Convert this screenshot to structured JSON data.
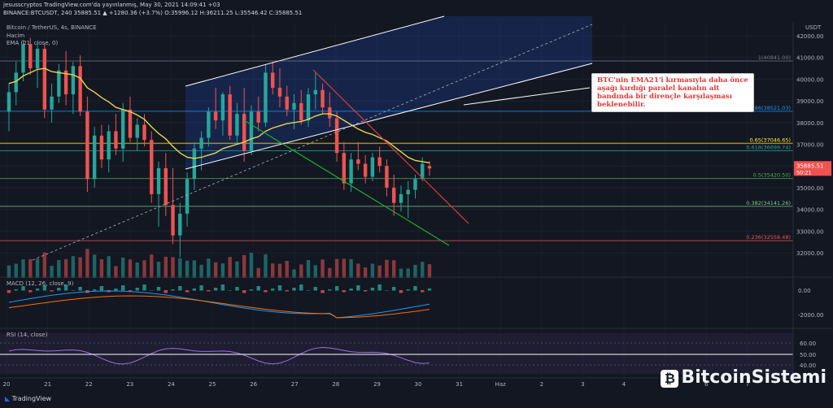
{
  "header": {
    "publisher": "jesusscryptos TradingView.com'da yayınlanmış, May 30, 2021 14:09:41 +03",
    "symbol_line": "BINANCE:BTCUSDT, 240  35885.51  ▲ +1280.36 (+3.7%)  O:35996.12  H:36211.25  L:35546.42  C:35885.51",
    "title": "Bitcoin / TetherUS, 4s, BINANCE",
    "volume_label": "Hacim",
    "ema_label": "EMA (21, close, 0)",
    "currency": "USDT"
  },
  "callout_text": "BTC'nin EMA21'i kırmasıyla daha önce aşağı kırdığı paralel kanalın alt bandında bir dirençle karşılaşması beklenebilir.",
  "brand": {
    "tradingview": "TradingView",
    "site": "BitcoinSistemi"
  },
  "indicators": {
    "macd_label": "MACD (12, 26, close, 9)",
    "rsi_label": "RSI (14, close)"
  },
  "colors": {
    "bull": "#26a69a",
    "bear": "#ef5350",
    "ema": "#e8d44d",
    "channel": "#ffffff",
    "red_line": "#e53935",
    "green_line": "#1faa2b",
    "rsi": "#9c6fd6",
    "bg": "#131722"
  },
  "chart_data": {
    "type": "candlestick",
    "title": "Bitcoin / TetherUS, 4s, BINANCE",
    "ylim": [
      31000,
      42500
    ],
    "y_ticks": [
      32000,
      33000,
      34000,
      35000,
      36000,
      37000,
      38000,
      39000,
      40000,
      41000,
      42000
    ],
    "x_ticks": [
      "20",
      "21",
      "22",
      "23",
      "24",
      "25",
      "26",
      "27",
      "28",
      "29",
      "30",
      "31",
      "Haz",
      "2",
      "3",
      "4",
      "5",
      "6",
      "7"
    ],
    "last_price": "35885.51",
    "countdown": "50:21",
    "candles": [
      [
        38500,
        39800,
        37600,
        39400
      ],
      [
        39400,
        40800,
        38800,
        40300
      ],
      [
        40300,
        41800,
        39900,
        41600
      ],
      [
        41600,
        41900,
        40200,
        40500
      ],
      [
        40500,
        41700,
        39600,
        41400
      ],
      [
        41400,
        41600,
        38200,
        38600
      ],
      [
        38600,
        39800,
        38000,
        39200
      ],
      [
        39200,
        40700,
        38900,
        40400
      ],
      [
        40400,
        41300,
        38800,
        39300
      ],
      [
        39300,
        40800,
        38400,
        40600
      ],
      [
        40600,
        41100,
        38300,
        38500
      ],
      [
        38500,
        39200,
        34800,
        35400
      ],
      [
        35400,
        37800,
        35000,
        37400
      ],
      [
        37400,
        37900,
        35900,
        36300
      ],
      [
        36300,
        37900,
        35700,
        37600
      ],
      [
        37600,
        38400,
        36500,
        36800
      ],
      [
        36800,
        38900,
        36200,
        38600
      ],
      [
        38600,
        39200,
        37100,
        37300
      ],
      [
        37300,
        38200,
        36700,
        37900
      ],
      [
        37900,
        38400,
        36900,
        37200
      ],
      [
        37200,
        37600,
        34300,
        34700
      ],
      [
        34700,
        36200,
        33200,
        35900
      ],
      [
        35900,
        36600,
        33700,
        34200
      ],
      [
        34200,
        35900,
        32400,
        32800
      ],
      [
        32800,
        34300,
        31800,
        33800
      ],
      [
        33800,
        35700,
        33200,
        35400
      ],
      [
        35400,
        37100,
        34900,
        36800
      ],
      [
        36800,
        37600,
        35800,
        37300
      ],
      [
        37300,
        38700,
        36900,
        38500
      ],
      [
        38500,
        39600,
        37700,
        38100
      ],
      [
        38100,
        39400,
        37400,
        39300
      ],
      [
        39300,
        39700,
        37200,
        37400
      ],
      [
        37400,
        38900,
        37000,
        38400
      ],
      [
        38400,
        39600,
        36200,
        36700
      ],
      [
        36700,
        38800,
        36500,
        38500
      ],
      [
        38500,
        39200,
        37600,
        38000
      ],
      [
        38000,
        40700,
        37800,
        40300
      ],
      [
        40300,
        40800,
        39300,
        39600
      ],
      [
        39600,
        40500,
        38700,
        39200
      ],
      [
        39200,
        39700,
        38300,
        38600
      ],
      [
        38600,
        39300,
        37700,
        38900
      ],
      [
        38900,
        39500,
        37900,
        38100
      ],
      [
        38100,
        39600,
        37800,
        39300
      ],
      [
        39300,
        40300,
        38600,
        39500
      ],
      [
        39500,
        39800,
        38400,
        38700
      ],
      [
        38700,
        39400,
        37800,
        38200
      ],
      [
        38200,
        38500,
        36200,
        36600
      ],
      [
        36600,
        37100,
        34900,
        35200
      ],
      [
        35200,
        36600,
        34800,
        36300
      ],
      [
        36300,
        37100,
        35800,
        36100
      ],
      [
        36100,
        36500,
        35200,
        35500
      ],
      [
        35500,
        36600,
        35300,
        36400
      ],
      [
        36400,
        36900,
        35700,
        36000
      ],
      [
        36000,
        36300,
        34600,
        35000
      ],
      [
        35000,
        35600,
        33700,
        34300
      ],
      [
        34300,
        35100,
        33900,
        34700
      ],
      [
        34700,
        35300,
        33600,
        34900
      ],
      [
        34900,
        35600,
        34500,
        35400
      ],
      [
        35400,
        36400,
        35300,
        36100
      ],
      [
        35996.12,
        36211.25,
        35546.42,
        35885.51
      ]
    ],
    "ema21": [
      39800,
      39900,
      40150,
      40300,
      40450,
      40500,
      40350,
      40300,
      40250,
      40200,
      40050,
      39600,
      39400,
      39150,
      38950,
      38700,
      38600,
      38500,
      38350,
      38150,
      37800,
      37500,
      37250,
      36900,
      36600,
      36400,
      36350,
      36400,
      36500,
      36600,
      36800,
      36900,
      37000,
      37100,
      37250,
      37350,
      37600,
      37750,
      37850,
      37950,
      38000,
      38050,
      38150,
      38300,
      38400,
      38400,
      38300,
      38100,
      37900,
      37700,
      37550,
      37450,
      37300,
      37150,
      36900,
      36650,
      36400,
      36250,
      36200,
      36150
    ],
    "fibonacci": [
      {
        "level": "1",
        "price": 40841.0,
        "label": "1(40841.00)"
      },
      {
        "level": "0.786",
        "price": 38521.03,
        "label": "0.786(38521.03)"
      },
      {
        "level": "0.65",
        "price": 37046.65,
        "label": "0.65(37046.65)"
      },
      {
        "level": "0.618",
        "price": 36699.74,
        "label": "0.618(36699.74)"
      },
      {
        "level": "0.5",
        "price": 35420.5,
        "label": "0.5(35420.50)"
      },
      {
        "level": "0.382",
        "price": 34141.26,
        "label": "0.382(34141.26)"
      },
      {
        "level": "0.236",
        "price": 32558.48,
        "label": "0.236(32558.48)"
      }
    ],
    "macd_ticks": [
      "0.00",
      "-2000.00"
    ],
    "rsi_ticks": [
      "60.00",
      "50.00",
      "40.00"
    ]
  }
}
